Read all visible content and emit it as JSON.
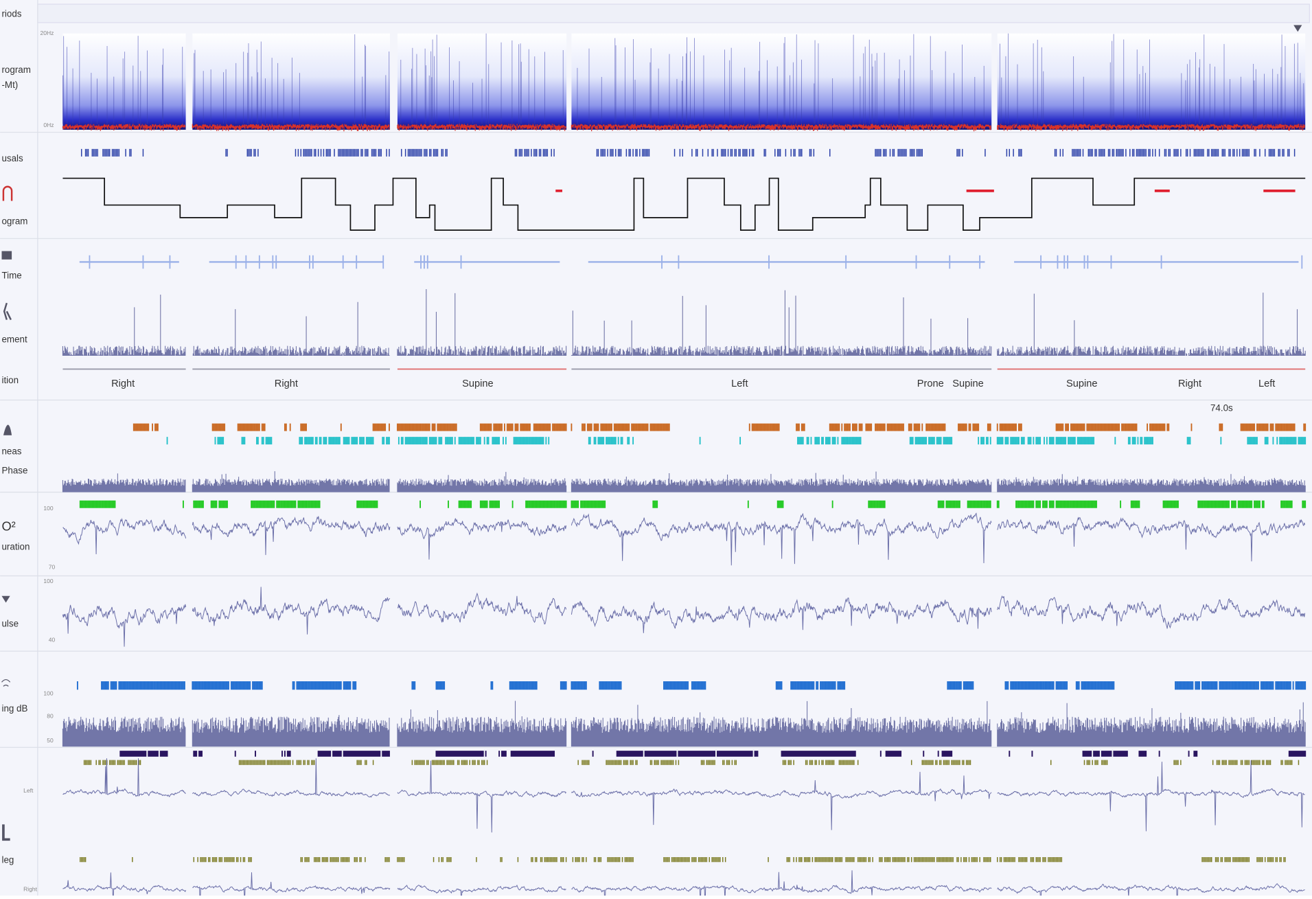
{
  "sidebar": {
    "periods": "riods",
    "spectrogram": "rogram",
    "spectrogram_unit": "-Mt)",
    "arousals": "usals",
    "hypnogram": "ogram",
    "plot_time": "Time",
    "movement": "ement",
    "position": "ition",
    "apneas": "neas",
    "phase": "Phase",
    "saturation": "uration",
    "pulse": "ulse",
    "snoring": "ing dB",
    "leg": "leg",
    "leg_left": "Left",
    "leg_right": "Right"
  },
  "axis_ticks": {
    "spectrogram": [
      "20Hz",
      "0Hz"
    ],
    "saturation": [
      "100",
      "70"
    ],
    "pulse": [
      "100",
      "40"
    ],
    "snoring": [
      "100",
      "80",
      "50"
    ]
  },
  "positions": [
    "Right",
    "Right",
    "Supine",
    "Left",
    "Prone",
    "Supine",
    "Supine",
    "Right",
    "Left"
  ],
  "annotation": "74.0s"
}
